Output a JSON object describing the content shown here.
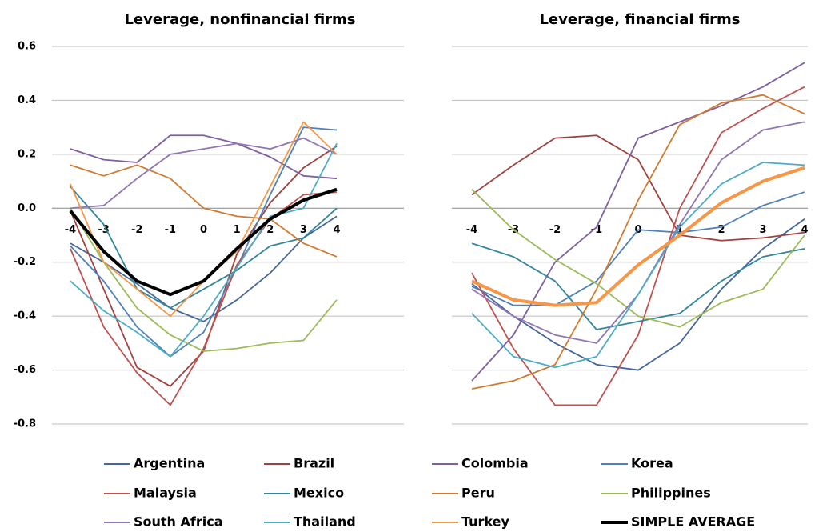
{
  "chart_data": [
    {
      "type": "line",
      "title": "Leverage, nonfinancial firms",
      "x": [
        -4,
        -3,
        -2,
        -1,
        0,
        1,
        2,
        3,
        4
      ],
      "ylim": [
        -0.8,
        0.6
      ],
      "yticks": [
        0.6,
        0.4,
        0.2,
        {
          "value": 0,
          "label": "0.0"
        },
        -0.2,
        -0.4,
        -0.6,
        -0.8
      ],
      "grid": true,
      "series": [
        {
          "name": "Argentina",
          "color": "#44679b",
          "values": [
            -0.13,
            -0.2,
            -0.28,
            -0.37,
            -0.42,
            -0.34,
            -0.24,
            -0.11,
            -0.03
          ]
        },
        {
          "name": "Brazil",
          "color": "#a0413e",
          "values": [
            -0.01,
            -0.3,
            -0.59,
            -0.66,
            -0.53,
            -0.17,
            0.02,
            0.15,
            0.23
          ]
        },
        {
          "name": "Colombia",
          "color": "#7e5fa0",
          "values": [
            0.22,
            0.18,
            0.17,
            0.27,
            0.27,
            0.24,
            0.19,
            0.12,
            0.11
          ]
        },
        {
          "name": "Korea",
          "color": "#4f81bd",
          "values": [
            -0.14,
            -0.27,
            -0.44,
            -0.55,
            -0.46,
            -0.22,
            0.05,
            0.3,
            0.29
          ]
        },
        {
          "name": "Malaysia",
          "color": "#c0504d",
          "values": [
            -0.15,
            -0.44,
            -0.61,
            -0.73,
            -0.52,
            -0.21,
            -0.04,
            0.05,
            0.06
          ]
        },
        {
          "name": "Mexico",
          "color": "#31859c",
          "values": [
            0.08,
            -0.06,
            -0.3,
            -0.37,
            -0.3,
            -0.23,
            -0.14,
            -0.11,
            0.0
          ]
        },
        {
          "name": "Peru",
          "color": "#d07a30",
          "values": [
            0.16,
            0.12,
            0.16,
            0.11,
            0.0,
            -0.03,
            -0.04,
            -0.13,
            -0.18
          ]
        },
        {
          "name": "Philippines",
          "color": "#9bbb59",
          "values": [
            0.0,
            -0.2,
            -0.37,
            -0.47,
            -0.53,
            -0.52,
            -0.5,
            -0.49,
            -0.34
          ]
        },
        {
          "name": "South Africa",
          "color": "#8f75b3",
          "values": [
            0.0,
            0.01,
            0.11,
            0.2,
            0.22,
            0.24,
            0.22,
            0.26,
            0.2
          ]
        },
        {
          "name": "Thailand",
          "color": "#4bacc6",
          "values": [
            -0.27,
            -0.38,
            -0.46,
            -0.55,
            -0.4,
            -0.22,
            -0.03,
            0.0,
            0.24
          ]
        },
        {
          "name": "Turkey",
          "color": "#f79646",
          "values": [
            0.09,
            -0.2,
            -0.3,
            -0.4,
            -0.27,
            -0.16,
            0.08,
            0.32,
            0.2
          ]
        },
        {
          "name": "SIMPLE AVERAGE",
          "color": "#000000",
          "values": [
            -0.01,
            -0.16,
            -0.27,
            -0.32,
            -0.27,
            -0.15,
            -0.04,
            0.03,
            0.07
          ]
        }
      ]
    },
    {
      "type": "line",
      "title": "Leverage, financial firms",
      "x": [
        -4,
        -3,
        -2,
        -1,
        0,
        1,
        2,
        3,
        4
      ],
      "ylim": [
        -0.8,
        0.6
      ],
      "yticks": [
        0.6,
        0.4,
        0.2,
        0,
        -0.2,
        -0.4,
        -0.6,
        -0.8
      ],
      "grid": true,
      "series": [
        {
          "values": [
            -0.28,
            -0.4,
            -0.5,
            -0.58,
            -0.6,
            -0.5,
            -0.3,
            -0.15,
            -0.04
          ]
        },
        {
          "values": [
            0.05,
            0.16,
            0.26,
            0.27,
            0.18,
            -0.1,
            -0.12,
            -0.11,
            -0.09
          ]
        },
        {
          "values": [
            -0.64,
            -0.47,
            -0.2,
            -0.07,
            0.26,
            0.32,
            0.38,
            0.45,
            0.54
          ]
        },
        {
          "values": [
            -0.29,
            -0.36,
            -0.36,
            -0.27,
            -0.08,
            -0.09,
            -0.07,
            0.01,
            0.06
          ]
        },
        {
          "values": [
            -0.24,
            -0.52,
            -0.73,
            -0.73,
            -0.47,
            0.0,
            0.28,
            0.37,
            0.45
          ]
        },
        {
          "values": [
            -0.13,
            -0.18,
            -0.27,
            -0.45,
            -0.42,
            -0.39,
            -0.27,
            -0.18,
            -0.15
          ]
        },
        {
          "values": [
            -0.67,
            -0.64,
            -0.58,
            -0.3,
            0.03,
            0.31,
            0.39,
            0.42,
            0.35
          ]
        },
        {
          "values": [
            0.07,
            -0.08,
            -0.19,
            -0.28,
            -0.4,
            -0.44,
            -0.35,
            -0.3,
            -0.1
          ]
        },
        {
          "values": [
            -0.3,
            -0.4,
            -0.47,
            -0.5,
            -0.32,
            -0.06,
            0.18,
            0.29,
            0.32
          ]
        },
        {
          "values": [
            -0.39,
            -0.55,
            -0.59,
            -0.55,
            -0.32,
            -0.07,
            0.09,
            0.17,
            0.16
          ]
        },
        {
          "values": [
            -0.27,
            -0.34,
            -0.36,
            -0.35,
            -0.21,
            -0.1,
            0.02,
            0.1,
            0.15
          ]
        }
      ]
    }
  ]
}
